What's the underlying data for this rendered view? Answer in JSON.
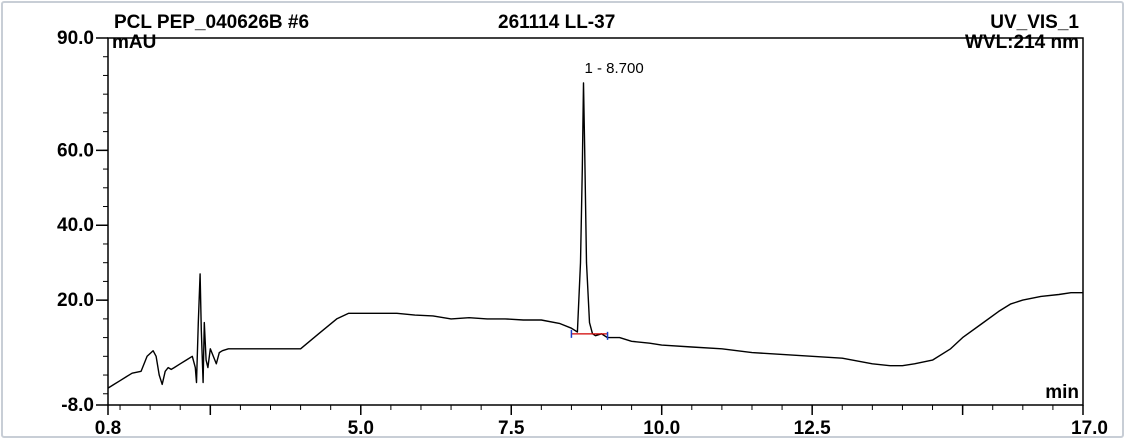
{
  "header": {
    "sample": "PCL PEP_040626B #6",
    "injection": "261114 LL-37",
    "channel": "UV_VIS_1",
    "y_unit": "mAU",
    "wavelength": "WVL:214 nm",
    "x_unit": "min"
  },
  "chart_data": {
    "type": "line",
    "title": "",
    "xlabel": "min",
    "ylabel": "mAU",
    "xlim": [
      0.8,
      17.0
    ],
    "ylim": [
      -8.0,
      90.0
    ],
    "x_ticks": [
      {
        "value": 0.8,
        "label": "0.8"
      },
      {
        "value": 5.0,
        "label": "5.0"
      },
      {
        "value": 7.5,
        "label": "7.5"
      },
      {
        "value": 10.0,
        "label": "10.0"
      },
      {
        "value": 12.5,
        "label": "12.5"
      },
      {
        "value": 17.0,
        "label": "17.0"
      }
    ],
    "y_ticks": [
      {
        "value": -8.0,
        "label": "-8.0"
      },
      {
        "value": 20.0,
        "label": "20.0"
      },
      {
        "value": 40.0,
        "label": "40.0"
      },
      {
        "value": 60.0,
        "label": "60.0"
      },
      {
        "value": 90.0,
        "label": "90.0"
      }
    ],
    "peak_label": {
      "text": "1 - 8.700",
      "x": 8.7,
      "y": 79.0
    },
    "baseline_segment": {
      "x": [
        8.5,
        9.1
      ],
      "y": [
        11.0,
        11.0
      ]
    },
    "grid": false,
    "series": [
      {
        "color": "#000000",
        "x": [
          0.8,
          0.9,
          1.0,
          1.1,
          1.2,
          1.35,
          1.45,
          1.55,
          1.6,
          1.65,
          1.7,
          1.75,
          1.8,
          1.85,
          1.9,
          2.0,
          2.1,
          2.2,
          2.25,
          2.27,
          2.3,
          2.33,
          2.35,
          2.38,
          2.4,
          2.43,
          2.46,
          2.5,
          2.55,
          2.6,
          2.65,
          2.7,
          2.8,
          3.0,
          3.5,
          4.0,
          4.3,
          4.6,
          4.8,
          5.0,
          5.3,
          5.6,
          5.9,
          6.2,
          6.5,
          6.8,
          7.1,
          7.4,
          7.7,
          8.0,
          8.3,
          8.5,
          8.6,
          8.65,
          8.68,
          8.7,
          8.72,
          8.75,
          8.8,
          8.85,
          8.9,
          9.0,
          9.1,
          9.3,
          9.5,
          9.8,
          10.0,
          10.5,
          11.0,
          11.5,
          12.0,
          12.5,
          13.0,
          13.5,
          13.8,
          14.0,
          14.2,
          14.5,
          14.8,
          15.0,
          15.3,
          15.6,
          15.8,
          16.0,
          16.3,
          16.6,
          16.8,
          17.0
        ],
        "y": [
          -3.5,
          -2.5,
          -1.5,
          -0.5,
          0.5,
          1.0,
          5.0,
          6.5,
          5.0,
          0.0,
          -2.5,
          1.0,
          2.0,
          1.5,
          2.0,
          3.0,
          4.0,
          5.0,
          2.0,
          -2.0,
          14.0,
          27.0,
          12.0,
          -2.0,
          14.0,
          4.0,
          2.0,
          7.0,
          5.0,
          3.0,
          6.0,
          6.5,
          7.0,
          7.0,
          7.0,
          7.0,
          11.0,
          15.0,
          16.5,
          16.5,
          16.5,
          16.5,
          16.0,
          15.8,
          15.0,
          15.3,
          15.0,
          15.0,
          14.7,
          14.7,
          13.8,
          12.5,
          11.5,
          30.0,
          55.0,
          78.0,
          60.0,
          30.0,
          14.0,
          11.0,
          10.5,
          11.0,
          10.0,
          10.0,
          9.0,
          8.5,
          8.0,
          7.5,
          7.0,
          6.0,
          5.5,
          5.0,
          4.5,
          3.0,
          2.5,
          2.5,
          3.0,
          4.0,
          7.0,
          10.0,
          13.5,
          17.0,
          19.0,
          20.0,
          21.0,
          21.5,
          22.0,
          22.0
        ]
      }
    ]
  }
}
